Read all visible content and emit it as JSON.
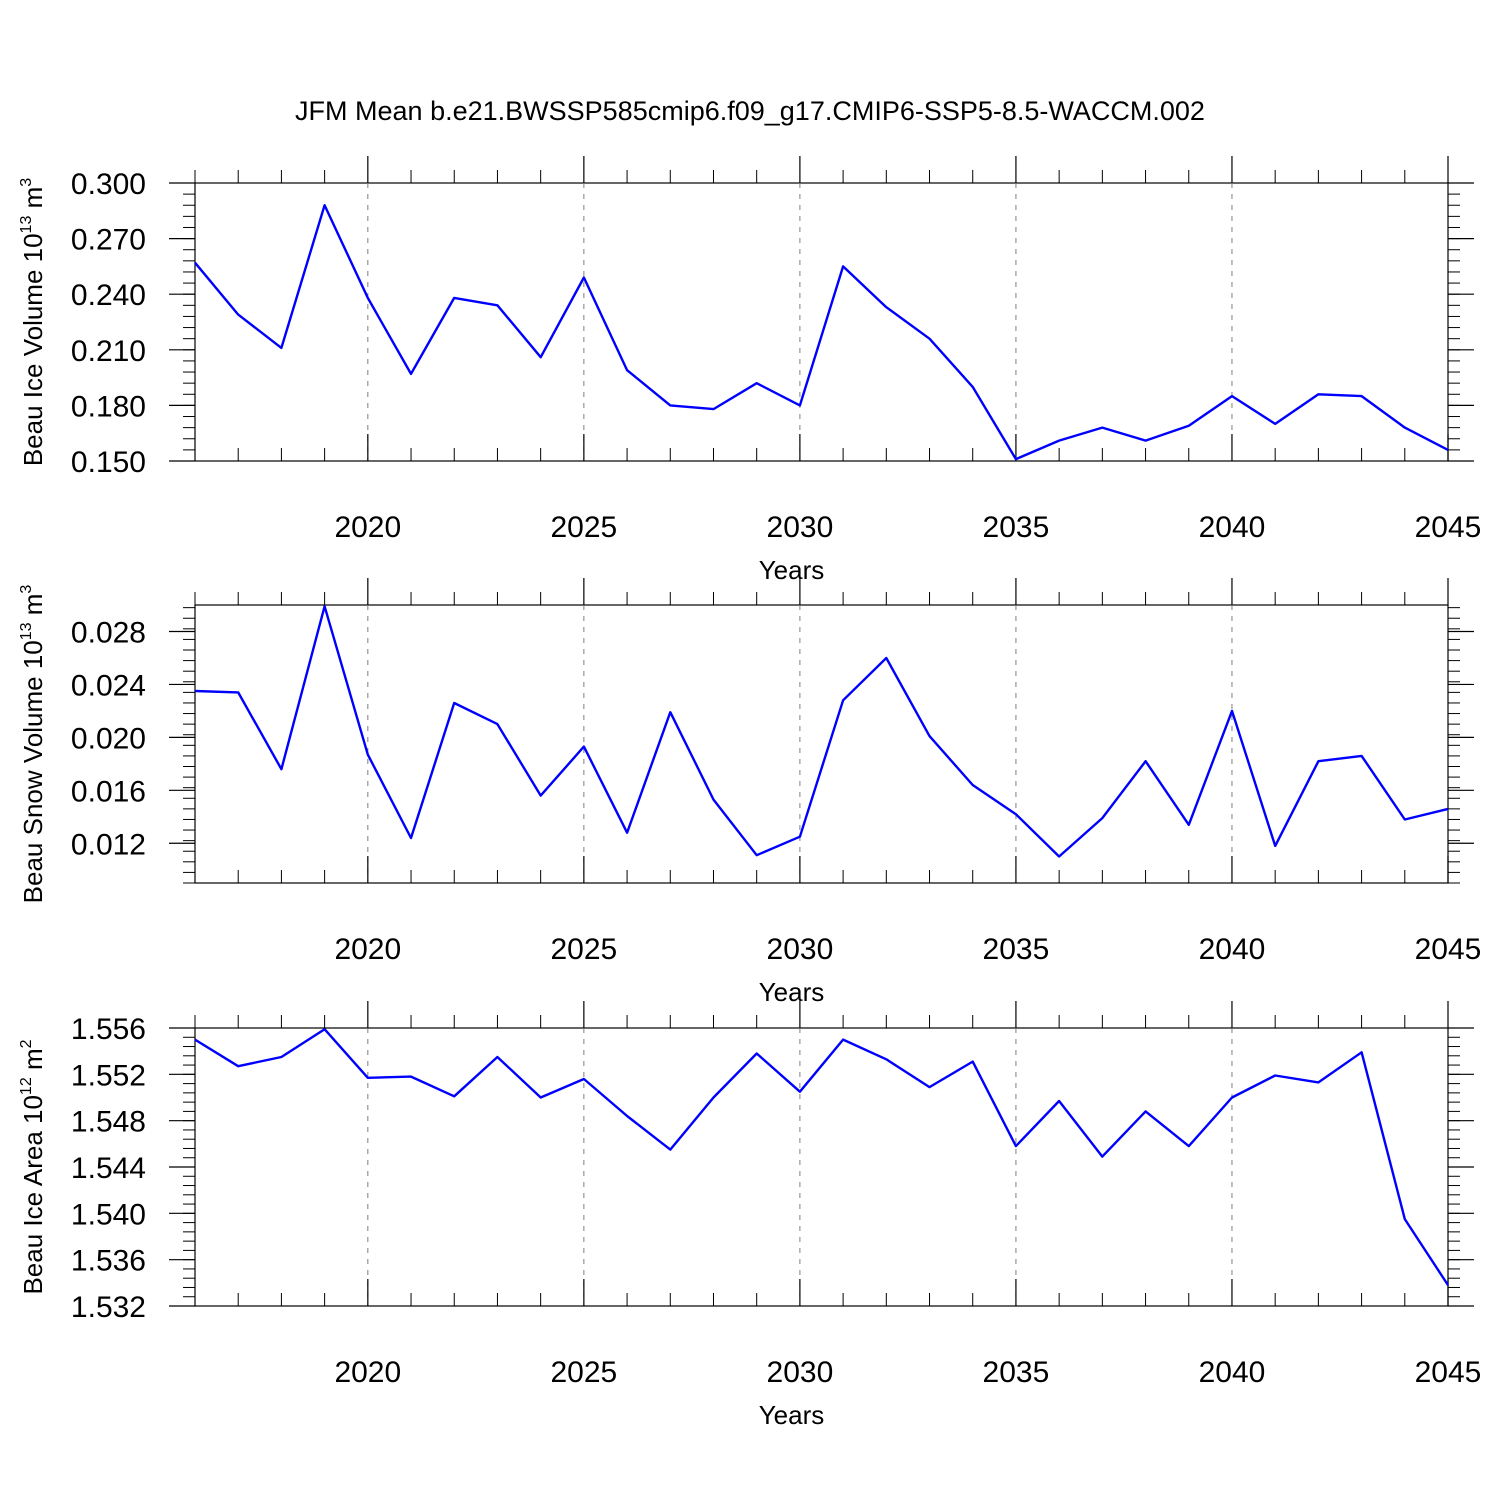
{
  "title": "JFM Mean b.e21.BWSSP585cmip6.f09_g17.CMIP6-SSP5-8.5-WACCM.002",
  "colors": {
    "line": "#0000ff",
    "axis": "#000000",
    "grid": "#7f7f7f"
  },
  "chart_data": [
    {
      "type": "line",
      "name": "ice-volume",
      "ylabel": "Beau Ice Volume 10",
      "ylabel_exp": "13",
      "ylabel_unit": "m",
      "ylabel_unit_exp": "3",
      "xlabel": "Years",
      "xlim": [
        2016,
        2045
      ],
      "ylim": [
        0.15,
        0.3
      ],
      "yticks": [
        "0.150",
        "0.180",
        "0.210",
        "0.240",
        "0.270",
        "0.300"
      ],
      "xticks": [
        "2020",
        "2025",
        "2030",
        "2035",
        "2040",
        "2045"
      ],
      "x": [
        2016,
        2017,
        2018,
        2019,
        2020,
        2021,
        2022,
        2023,
        2024,
        2025,
        2026,
        2027,
        2028,
        2029,
        2030,
        2031,
        2032,
        2033,
        2034,
        2035,
        2036,
        2037,
        2038,
        2039,
        2040,
        2041,
        2042,
        2043,
        2044,
        2045
      ],
      "values": [
        0.257,
        0.229,
        0.211,
        0.288,
        0.238,
        0.197,
        0.238,
        0.234,
        0.206,
        0.249,
        0.199,
        0.18,
        0.178,
        0.192,
        0.18,
        0.255,
        0.233,
        0.216,
        0.19,
        0.151,
        0.161,
        0.168,
        0.161,
        0.169,
        0.185,
        0.17,
        0.186,
        0.185,
        0.168,
        0.156
      ],
      "grid": "vertical dashed"
    },
    {
      "type": "line",
      "name": "snow-volume",
      "ylabel": "Beau Snow Volume 10",
      "ylabel_exp": "13",
      "ylabel_unit": "m",
      "ylabel_unit_exp": "3",
      "xlabel": "Years",
      "xlim": [
        2016,
        2045
      ],
      "ylim": [
        0.009,
        0.03
      ],
      "yticks": [
        "0.012",
        "0.016",
        "0.020",
        "0.024",
        "0.028"
      ],
      "xticks": [
        "2020",
        "2025",
        "2030",
        "2035",
        "2040",
        "2045"
      ],
      "x": [
        2016,
        2017,
        2018,
        2019,
        2020,
        2021,
        2022,
        2023,
        2024,
        2025,
        2026,
        2027,
        2028,
        2029,
        2030,
        2031,
        2032,
        2033,
        2034,
        2035,
        2036,
        2037,
        2038,
        2039,
        2040,
        2041,
        2042,
        2043,
        2044,
        2045
      ],
      "values": [
        0.0235,
        0.0234,
        0.0176,
        0.0299,
        0.0187,
        0.0124,
        0.0226,
        0.021,
        0.0156,
        0.0193,
        0.0128,
        0.0219,
        0.0153,
        0.0111,
        0.0125,
        0.0228,
        0.026,
        0.0201,
        0.0164,
        0.0142,
        0.011,
        0.0139,
        0.0182,
        0.0134,
        0.022,
        0.0118,
        0.0182,
        0.0186,
        0.0138,
        0.0146
      ],
      "grid": "vertical dashed"
    },
    {
      "type": "line",
      "name": "ice-area",
      "ylabel": "Beau Ice Area 10",
      "ylabel_exp": "12",
      "ylabel_unit": "m",
      "ylabel_unit_exp": "2",
      "xlabel": "Years",
      "xlim": [
        2016,
        2045
      ],
      "ylim": [
        1.532,
        1.556
      ],
      "yticks": [
        "1.532",
        "1.536",
        "1.540",
        "1.544",
        "1.548",
        "1.552",
        "1.556"
      ],
      "xticks": [
        "2020",
        "2025",
        "2030",
        "2035",
        "2040",
        "2045"
      ],
      "x": [
        2016,
        2017,
        2018,
        2019,
        2020,
        2021,
        2022,
        2023,
        2024,
        2025,
        2026,
        2027,
        2028,
        2029,
        2030,
        2031,
        2032,
        2033,
        2034,
        2035,
        2036,
        2037,
        2038,
        2039,
        2040,
        2041,
        2042,
        2043,
        2044,
        2045
      ],
      "values": [
        1.555,
        1.5527,
        1.5535,
        1.5559,
        1.5517,
        1.5518,
        1.5501,
        1.5535,
        1.55,
        1.5516,
        1.5484,
        1.5455,
        1.55,
        1.5538,
        1.5505,
        1.555,
        1.5533,
        1.5509,
        1.5531,
        1.5458,
        1.5497,
        1.5449,
        1.5488,
        1.5458,
        1.55,
        1.5519,
        1.5513,
        1.5539,
        1.5395,
        1.5338
      ],
      "grid": "vertical dashed"
    }
  ]
}
